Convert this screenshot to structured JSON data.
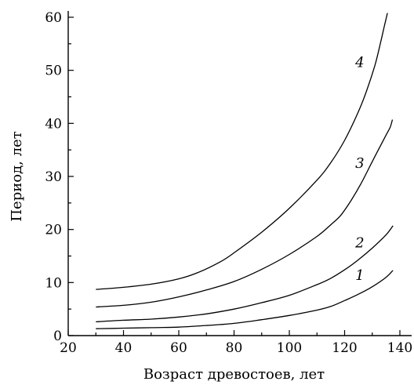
{
  "chart_data": {
    "type": "line",
    "title": "",
    "xlabel": "Возраст древостоев, лет",
    "ylabel": "Период, лет",
    "xlim": [
      20,
      145
    ],
    "ylim": [
      0,
      62
    ],
    "xticks": [
      20,
      40,
      60,
      80,
      100,
      120,
      140
    ],
    "yticks": [
      0,
      10,
      20,
      30,
      40,
      50,
      60
    ],
    "grid": false,
    "legend": "none",
    "series": [
      {
        "name": "1",
        "label_at": [
          125.5,
          11.4
        ],
        "x": [
          30,
          40,
          50,
          60,
          70,
          80,
          90,
          100,
          110,
          115,
          120,
          125,
          130,
          135,
          137.5
        ],
        "y": [
          1.3,
          1.4,
          1.5,
          1.6,
          1.9,
          2.3,
          3.0,
          3.8,
          4.8,
          5.5,
          6.6,
          7.8,
          9.2,
          11.0,
          12.3
        ]
      },
      {
        "name": "2",
        "label_at": [
          125.5,
          17.5
        ],
        "x": [
          30,
          40,
          50,
          60,
          70,
          80,
          90,
          100,
          110,
          115,
          120,
          125,
          130,
          135,
          137.5
        ],
        "y": [
          2.6,
          2.9,
          3.1,
          3.5,
          4.1,
          5.0,
          6.2,
          7.6,
          9.6,
          10.8,
          12.4,
          14.3,
          16.5,
          19.0,
          20.7
        ]
      },
      {
        "name": "3",
        "label_at": [
          125.5,
          32.5
        ],
        "x": [
          30,
          40,
          50,
          60,
          70,
          80,
          90,
          100,
          110,
          115,
          118.5,
          122,
          126,
          130,
          133,
          135,
          136.5,
          137.3
        ],
        "y": [
          5.4,
          5.7,
          6.3,
          7.3,
          8.6,
          10.2,
          12.5,
          15.3,
          18.7,
          20.9,
          22.6,
          25.2,
          28.7,
          32.8,
          35.8,
          37.8,
          39.3,
          40.7
        ]
      },
      {
        "name": "4",
        "label_at": [
          125.5,
          51.5
        ],
        "x": [
          30,
          40,
          50,
          60,
          67,
          75,
          80,
          90,
          100,
          110,
          115,
          120,
          125,
          128,
          131,
          133,
          134.5,
          135.5
        ],
        "y": [
          8.7,
          9.1,
          9.7,
          10.7,
          11.9,
          13.9,
          15.6,
          19.5,
          24.0,
          29.3,
          32.6,
          36.8,
          42.2,
          46.2,
          51.0,
          55.2,
          58.6,
          60.8
        ]
      }
    ]
  }
}
